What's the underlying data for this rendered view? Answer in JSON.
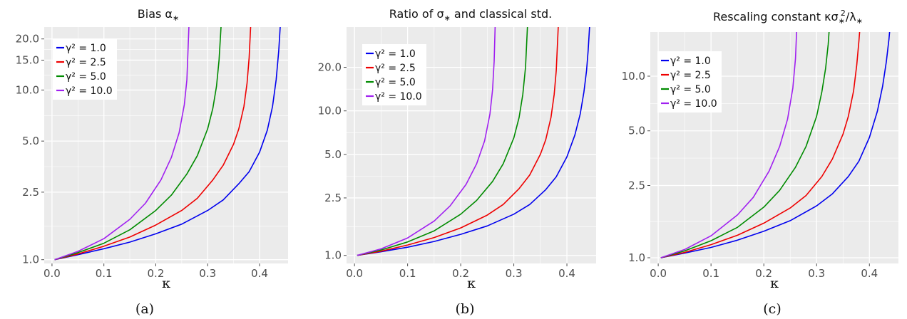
{
  "chart_data": [
    {
      "type": "line",
      "title": "Bias α*",
      "caption": "(a)",
      "xlabel": "κ",
      "ylabel": "",
      "xlim": [
        -0.015,
        0.455
      ],
      "ylim": [
        0.95,
        23.5
      ],
      "yscale": "log",
      "xticks": [
        0.0,
        0.1,
        0.2,
        0.3,
        0.4
      ],
      "xtick_labels": [
        "0.0",
        "0.1",
        "0.2",
        "0.3",
        "0.4"
      ],
      "yticks": [
        1.0,
        2.5,
        5.0,
        10.0,
        15.0,
        20.0
      ],
      "ytick_labels": [
        "1.0",
        "2.5",
        "5.0",
        "10.0",
        "15.0",
        "20.0"
      ],
      "grid": true,
      "legend_position": "top-left",
      "series": [
        {
          "name": "γ² = 1.0",
          "color": "#0000ee",
          "x": [
            0.005,
            0.05,
            0.1,
            0.15,
            0.2,
            0.25,
            0.3,
            0.33,
            0.36,
            0.38,
            0.4,
            0.415,
            0.425,
            0.432,
            0.437,
            0.44
          ],
          "y": [
            1.0,
            1.07,
            1.16,
            1.27,
            1.42,
            1.62,
            1.95,
            2.25,
            2.8,
            3.3,
            4.3,
            5.8,
            8.0,
            11.5,
            17.0,
            24.0
          ]
        },
        {
          "name": "γ² = 2.5",
          "color": "#ee0000",
          "x": [
            0.005,
            0.05,
            0.1,
            0.15,
            0.2,
            0.25,
            0.28,
            0.31,
            0.33,
            0.35,
            0.36,
            0.37,
            0.376,
            0.38,
            0.383
          ],
          "y": [
            1.0,
            1.08,
            1.2,
            1.36,
            1.6,
            1.95,
            2.3,
            2.95,
            3.6,
            4.8,
            5.9,
            8.0,
            11.0,
            15.5,
            24.0
          ]
        },
        {
          "name": "γ² = 5.0",
          "color": "#008b00",
          "x": [
            0.005,
            0.05,
            0.1,
            0.15,
            0.2,
            0.23,
            0.26,
            0.28,
            0.3,
            0.31,
            0.317,
            0.322,
            0.326
          ],
          "y": [
            1.0,
            1.1,
            1.25,
            1.5,
            1.95,
            2.4,
            3.2,
            4.1,
            5.9,
            7.8,
            10.5,
            15.0,
            24.0
          ]
        },
        {
          "name": "γ² = 10.0",
          "color": "#a020f0",
          "x": [
            0.005,
            0.05,
            0.1,
            0.15,
            0.18,
            0.21,
            0.23,
            0.245,
            0.255,
            0.26,
            0.264
          ],
          "y": [
            1.0,
            1.12,
            1.33,
            1.73,
            2.15,
            2.95,
            4.0,
            5.6,
            8.2,
            11.5,
            24.0
          ]
        }
      ]
    },
    {
      "type": "line",
      "title": "Ratio of σ* and classical std.",
      "caption": "(b)",
      "xlabel": "κ",
      "ylabel": "",
      "xlim": [
        -0.015,
        0.455
      ],
      "ylim": [
        0.88,
        38.0
      ],
      "yscale": "log",
      "xticks": [
        0.0,
        0.1,
        0.2,
        0.3,
        0.4
      ],
      "xtick_labels": [
        "0.0",
        "0.1",
        "0.2",
        "0.3",
        "0.4"
      ],
      "yticks": [
        1.0,
        2.5,
        5.0,
        10.0,
        20.0
      ],
      "ytick_labels": [
        "1.0",
        "2.5",
        "5.0",
        "10.0",
        "20.0"
      ],
      "grid": true,
      "legend_position": "top-left",
      "series": [
        {
          "name": "γ² = 1.0",
          "color": "#0000ee",
          "x": [
            0.005,
            0.05,
            0.1,
            0.15,
            0.2,
            0.25,
            0.3,
            0.33,
            0.36,
            0.38,
            0.4,
            0.415,
            0.425,
            0.432,
            0.437,
            0.44,
            0.443
          ],
          "y": [
            1.0,
            1.06,
            1.14,
            1.25,
            1.4,
            1.6,
            1.93,
            2.25,
            2.85,
            3.5,
            4.8,
            6.8,
            9.5,
            13.5,
            19.0,
            26.0,
            40.0
          ]
        },
        {
          "name": "γ² = 2.5",
          "color": "#ee0000",
          "x": [
            0.005,
            0.05,
            0.1,
            0.15,
            0.2,
            0.25,
            0.28,
            0.31,
            0.33,
            0.35,
            0.36,
            0.37,
            0.376,
            0.38,
            0.384
          ],
          "y": [
            1.0,
            1.07,
            1.18,
            1.33,
            1.55,
            1.9,
            2.25,
            2.9,
            3.6,
            5.0,
            6.3,
            9.0,
            13.0,
            19.0,
            40.0
          ]
        },
        {
          "name": "γ² = 5.0",
          "color": "#008b00",
          "x": [
            0.005,
            0.05,
            0.1,
            0.15,
            0.2,
            0.23,
            0.26,
            0.28,
            0.3,
            0.31,
            0.317,
            0.322,
            0.326
          ],
          "y": [
            1.0,
            1.09,
            1.24,
            1.48,
            1.93,
            2.4,
            3.25,
            4.3,
            6.5,
            9.0,
            13.0,
            20.0,
            40.0
          ]
        },
        {
          "name": "γ² = 10.0",
          "color": "#a020f0",
          "x": [
            0.005,
            0.05,
            0.1,
            0.15,
            0.18,
            0.21,
            0.23,
            0.245,
            0.255,
            0.26,
            0.263,
            0.265
          ],
          "y": [
            1.0,
            1.11,
            1.32,
            1.73,
            2.2,
            3.1,
            4.3,
            6.2,
            9.5,
            14.0,
            22.0,
            40.0
          ]
        }
      ]
    },
    {
      "type": "line",
      "title": "Rescaling constant κσ*²/λ*",
      "caption": "(c)",
      "xlabel": "κ",
      "ylabel": "",
      "xlim": [
        -0.015,
        0.455
      ],
      "ylim": [
        0.93,
        17.5
      ],
      "yscale": "log",
      "xticks": [
        0.0,
        0.1,
        0.2,
        0.3,
        0.4
      ],
      "xtick_labels": [
        "0.0",
        "0.1",
        "0.2",
        "0.3",
        "0.4"
      ],
      "yticks": [
        1.0,
        2.5,
        5.0,
        10.0
      ],
      "ytick_labels": [
        "1.0",
        "2.5",
        "5.0",
        "10.0"
      ],
      "grid": true,
      "legend_position": "top-left",
      "series": [
        {
          "name": "γ² = 1.0",
          "color": "#0000ee",
          "x": [
            0.005,
            0.05,
            0.1,
            0.15,
            0.2,
            0.25,
            0.3,
            0.33,
            0.36,
            0.38,
            0.4,
            0.415,
            0.425,
            0.432,
            0.437,
            0.44
          ],
          "y": [
            1.0,
            1.06,
            1.14,
            1.25,
            1.4,
            1.6,
            1.93,
            2.25,
            2.8,
            3.4,
            4.6,
            6.4,
            8.8,
            12.0,
            16.0,
            20.0
          ]
        },
        {
          "name": "γ² = 2.5",
          "color": "#ee0000",
          "x": [
            0.005,
            0.05,
            0.1,
            0.15,
            0.2,
            0.25,
            0.28,
            0.31,
            0.33,
            0.35,
            0.36,
            0.37,
            0.376,
            0.38,
            0.383
          ],
          "y": [
            1.0,
            1.07,
            1.18,
            1.33,
            1.55,
            1.88,
            2.2,
            2.8,
            3.5,
            4.8,
            6.0,
            8.3,
            11.5,
            15.5,
            20.0
          ]
        },
        {
          "name": "γ² = 5.0",
          "color": "#008b00",
          "x": [
            0.005,
            0.05,
            0.1,
            0.15,
            0.2,
            0.23,
            0.26,
            0.28,
            0.3,
            0.31,
            0.317,
            0.322,
            0.325
          ],
          "y": [
            1.0,
            1.09,
            1.24,
            1.47,
            1.9,
            2.35,
            3.15,
            4.1,
            6.0,
            8.2,
            11.0,
            15.0,
            20.0
          ]
        },
        {
          "name": "γ² = 10.0",
          "color": "#a020f0",
          "x": [
            0.005,
            0.05,
            0.1,
            0.15,
            0.18,
            0.21,
            0.23,
            0.245,
            0.255,
            0.26,
            0.263
          ],
          "y": [
            1.0,
            1.11,
            1.32,
            1.72,
            2.15,
            3.0,
            4.1,
            5.8,
            8.6,
            12.5,
            20.0
          ]
        }
      ]
    }
  ]
}
